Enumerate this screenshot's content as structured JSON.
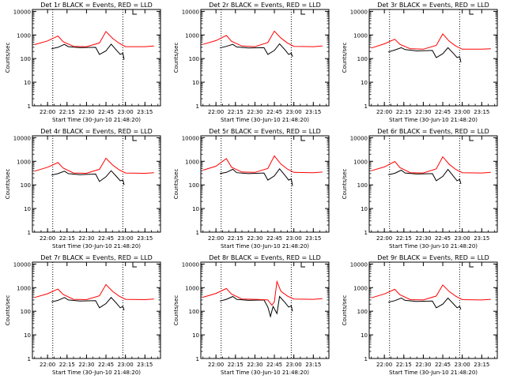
{
  "figure": {
    "colors": {
      "events": "#000000",
      "lld": "#ff0000",
      "axis": "#000000",
      "background": "#ffffff"
    }
  },
  "chart_data": [
    {
      "type": "line",
      "panel": "Det 1r",
      "title": "Det 1r BLACK = Events, RED = LLD",
      "xlabel": "Start Time (30-Jun-10 21:48:20)",
      "ylabel": "Counts/sec",
      "x_ticks": [
        "22:00",
        "22:15",
        "22:30",
        "22:45",
        "23:00",
        "23:15"
      ],
      "y_ticks": [
        "1",
        "10",
        "100",
        "1000",
        "10000"
      ],
      "y_scale": "log",
      "ylim": [
        1,
        12000
      ],
      "xlim": [
        "21:48:20",
        "23:27:00"
      ],
      "markers": [
        "22:04",
        "22:58"
      ],
      "series": [
        {
          "name": "BLACK = Events",
          "x": [
            "22:03",
            "22:08",
            "22:13",
            "22:16",
            "22:25",
            "22:37",
            "22:40",
            "22:45",
            "22:49",
            "22:53",
            "22:56",
            "22:58",
            "22:59"
          ],
          "values": [
            260,
            300,
            400,
            320,
            290,
            300,
            150,
            210,
            410,
            230,
            150,
            170,
            90
          ]
        },
        {
          "name": "RED = LLD",
          "x": [
            "21:50",
            "22:00",
            "22:08",
            "22:12",
            "22:20",
            "22:30",
            "22:40",
            "22:45",
            "22:50",
            "22:55",
            "23:00",
            "23:15",
            "23:22"
          ],
          "values": [
            390,
            560,
            900,
            520,
            330,
            320,
            460,
            1400,
            720,
            450,
            320,
            320,
            340
          ]
        }
      ]
    },
    {
      "type": "line",
      "panel": "Det 2r",
      "title": "Det 2r BLACK = Events, RED = LLD",
      "xlabel": "Start Time (30-Jun-10 21:48:20)",
      "ylabel": "Counts/sec",
      "x_ticks": [
        "22:00",
        "22:15",
        "22:30",
        "22:45",
        "23:00",
        "23:15"
      ],
      "y_ticks": [
        "1",
        "10",
        "100",
        "1000",
        "10000"
      ],
      "y_scale": "log",
      "ylim": [
        1,
        12000
      ],
      "xlim": [
        "21:48:20",
        "23:27:00"
      ],
      "markers": [
        "22:04",
        "22:58"
      ],
      "series": [
        {
          "name": "BLACK = Events",
          "x": [
            "22:03",
            "22:08",
            "22:13",
            "22:16",
            "22:25",
            "22:37",
            "22:40",
            "22:45",
            "22:49",
            "22:53",
            "22:56",
            "22:58",
            "22:59"
          ],
          "values": [
            280,
            330,
            400,
            310,
            280,
            290,
            150,
            220,
            420,
            240,
            150,
            170,
            120
          ]
        },
        {
          "name": "RED = LLD",
          "x": [
            "21:50",
            "22:00",
            "22:08",
            "22:12",
            "22:20",
            "22:30",
            "22:40",
            "22:45",
            "22:50",
            "22:55",
            "23:00",
            "23:15",
            "23:22"
          ],
          "values": [
            400,
            580,
            950,
            540,
            340,
            320,
            480,
            1450,
            740,
            460,
            330,
            320,
            340
          ]
        }
      ]
    },
    {
      "type": "line",
      "panel": "Det 3r",
      "title": "Det 3r BLACK = Events, RED = LLD",
      "xlabel": "Start Time (30-Jun-10 21:48:20)",
      "ylabel": "Counts/sec",
      "x_ticks": [
        "22:00",
        "22:15",
        "22:30",
        "22:45",
        "23:00",
        "23:15"
      ],
      "y_ticks": [
        "1",
        "10",
        "100",
        "1000",
        "10000"
      ],
      "y_scale": "log",
      "ylim": [
        1,
        12000
      ],
      "xlim": [
        "21:48:20",
        "23:27:00"
      ],
      "markers": [
        "22:04",
        "22:58"
      ],
      "series": [
        {
          "name": "BLACK = Events",
          "x": [
            "22:03",
            "22:08",
            "22:13",
            "22:16",
            "22:25",
            "22:37",
            "22:40",
            "22:45",
            "22:49",
            "22:53",
            "22:56",
            "22:58",
            "22:59"
          ],
          "values": [
            190,
            230,
            290,
            240,
            210,
            220,
            110,
            160,
            290,
            170,
            110,
            120,
            70
          ]
        },
        {
          "name": "RED = LLD",
          "x": [
            "21:50",
            "22:00",
            "22:08",
            "22:12",
            "22:20",
            "22:30",
            "22:40",
            "22:45",
            "22:50",
            "22:55",
            "23:00",
            "23:15",
            "23:22"
          ],
          "values": [
            280,
            420,
            660,
            400,
            260,
            250,
            360,
            1100,
            540,
            340,
            250,
            250,
            260
          ]
        }
      ]
    },
    {
      "type": "line",
      "panel": "Det 4r",
      "title": "Det 4r BLACK = Events, RED = LLD",
      "xlabel": "Start Time (30-Jun-10 21:48:20)",
      "ylabel": "Counts/sec",
      "x_ticks": [
        "22:00",
        "22:15",
        "22:30",
        "22:45",
        "23:00",
        "23:15"
      ],
      "y_ticks": [
        "1",
        "10",
        "100",
        "1000",
        "10000"
      ],
      "y_scale": "log",
      "ylim": [
        1,
        12000
      ],
      "xlim": [
        "21:48:20",
        "23:27:00"
      ],
      "markers": [
        "22:04",
        "22:58"
      ],
      "series": [
        {
          "name": "BLACK = Events",
          "x": [
            "22:03",
            "22:08",
            "22:13",
            "22:16",
            "22:25",
            "22:37",
            "22:40",
            "22:45",
            "22:49",
            "22:53",
            "22:56",
            "22:58",
            "22:59"
          ],
          "values": [
            260,
            300,
            380,
            300,
            270,
            290,
            140,
            220,
            400,
            230,
            150,
            160,
            100
          ]
        },
        {
          "name": "RED = LLD",
          "x": [
            "21:50",
            "22:00",
            "22:08",
            "22:12",
            "22:20",
            "22:30",
            "22:40",
            "22:45",
            "22:50",
            "22:55",
            "23:00",
            "23:15",
            "23:22"
          ],
          "values": [
            380,
            560,
            880,
            520,
            320,
            310,
            460,
            1350,
            700,
            440,
            320,
            310,
            330
          ]
        }
      ]
    },
    {
      "type": "line",
      "panel": "Det 5r",
      "title": "Det 5r BLACK = Events, RED = LLD",
      "xlabel": "Start Time (30-Jun-10 21:48:20)",
      "ylabel": "Counts/sec",
      "x_ticks": [
        "22:00",
        "22:15",
        "22:30",
        "22:45",
        "23:00",
        "23:15"
      ],
      "y_ticks": [
        "1",
        "10",
        "100",
        "1000",
        "10000"
      ],
      "y_scale": "log",
      "ylim": [
        1,
        12000
      ],
      "xlim": [
        "21:48:20",
        "23:27:00"
      ],
      "markers": [
        "22:04",
        "22:58"
      ],
      "series": [
        {
          "name": "BLACK = Events",
          "x": [
            "22:03",
            "22:08",
            "22:13",
            "22:16",
            "22:25",
            "22:37",
            "22:40",
            "22:45",
            "22:49",
            "22:53",
            "22:56",
            "22:58",
            "22:59"
          ],
          "values": [
            300,
            340,
            460,
            330,
            300,
            320,
            160,
            240,
            480,
            260,
            160,
            180,
            90
          ]
        },
        {
          "name": "RED = LLD",
          "x": [
            "21:50",
            "22:00",
            "22:08",
            "22:12",
            "22:20",
            "22:30",
            "22:40",
            "22:45",
            "22:50",
            "22:55",
            "23:00",
            "23:15",
            "23:22"
          ],
          "values": [
            420,
            620,
            1300,
            560,
            350,
            340,
            500,
            1700,
            760,
            470,
            340,
            330,
            350
          ]
        }
      ]
    },
    {
      "type": "line",
      "panel": "Det 6r",
      "title": "Det 6r BLACK = Events, RED = LLD",
      "xlabel": "Start Time (30-Jun-10 21:48:20)",
      "ylabel": "Counts/sec",
      "x_ticks": [
        "22:00",
        "22:15",
        "22:30",
        "22:45",
        "23:00",
        "23:15"
      ],
      "y_ticks": [
        "1",
        "10",
        "100",
        "1000",
        "10000"
      ],
      "y_scale": "log",
      "ylim": [
        1,
        12000
      ],
      "xlim": [
        "21:48:20",
        "23:27:00"
      ],
      "markers": [
        "22:04",
        "22:58"
      ],
      "series": [
        {
          "name": "BLACK = Events",
          "x": [
            "22:03",
            "22:08",
            "22:13",
            "22:16",
            "22:25",
            "22:37",
            "22:40",
            "22:45",
            "22:49",
            "22:53",
            "22:56",
            "22:58",
            "22:59"
          ],
          "values": [
            270,
            310,
            420,
            320,
            290,
            300,
            150,
            230,
            450,
            240,
            150,
            170,
            110
          ]
        },
        {
          "name": "RED = LLD",
          "x": [
            "21:50",
            "22:00",
            "22:08",
            "22:12",
            "22:20",
            "22:30",
            "22:40",
            "22:45",
            "22:50",
            "22:55",
            "23:00",
            "23:15",
            "23:22"
          ],
          "values": [
            400,
            580,
            980,
            540,
            330,
            320,
            480,
            1550,
            740,
            450,
            330,
            320,
            340
          ]
        }
      ]
    },
    {
      "type": "line",
      "panel": "Det 7r",
      "title": "Det 7r BLACK = Events, RED = LLD",
      "xlabel": "Start Time (30-Jun-10 21:48:20)",
      "ylabel": "Counts/sec",
      "x_ticks": [
        "22:00",
        "22:15",
        "22:30",
        "22:45",
        "23:00",
        "23:15"
      ],
      "y_ticks": [
        "1",
        "10",
        "100",
        "1000",
        "10000"
      ],
      "y_scale": "log",
      "ylim": [
        1,
        12000
      ],
      "xlim": [
        "21:48:20",
        "23:27:00"
      ],
      "markers": [
        "22:04",
        "22:58"
      ],
      "series": [
        {
          "name": "BLACK = Events",
          "x": [
            "22:03",
            "22:08",
            "22:13",
            "22:16",
            "22:25",
            "22:37",
            "22:40",
            "22:45",
            "22:49",
            "22:53",
            "22:56",
            "22:58",
            "22:59"
          ],
          "values": [
            250,
            290,
            380,
            300,
            270,
            280,
            140,
            210,
            380,
            220,
            140,
            160,
            110
          ]
        },
        {
          "name": "RED = LLD",
          "x": [
            "21:50",
            "22:00",
            "22:08",
            "22:12",
            "22:20",
            "22:30",
            "22:40",
            "22:45",
            "22:50",
            "22:55",
            "23:00",
            "23:15",
            "23:22"
          ],
          "values": [
            380,
            550,
            870,
            510,
            320,
            310,
            450,
            1350,
            700,
            440,
            320,
            310,
            330
          ]
        }
      ]
    },
    {
      "type": "line",
      "panel": "Det 8r",
      "title": "Det 8r BLACK = Events, RED = LLD",
      "xlabel": "Start Time (30-Jun-10 21:48:20)",
      "ylabel": "Counts/sec",
      "x_ticks": [
        "22:00",
        "22:15",
        "22:30",
        "22:45",
        "23:00",
        "23:15"
      ],
      "y_ticks": [
        "1",
        "10",
        "100",
        "1000",
        "10000"
      ],
      "y_scale": "log",
      "ylim": [
        1,
        12000
      ],
      "xlim": [
        "21:48:20",
        "23:27:00"
      ],
      "markers": [
        "22:04",
        "22:58"
      ],
      "series": [
        {
          "name": "BLACK = Events",
          "x": [
            "22:03",
            "22:08",
            "22:13",
            "22:16",
            "22:25",
            "22:37",
            "22:40",
            "22:42",
            "22:44",
            "22:47",
            "22:49",
            "22:53",
            "22:56",
            "22:58",
            "22:59"
          ],
          "values": [
            270,
            320,
            420,
            320,
            290,
            300,
            150,
            60,
            160,
            80,
            420,
            240,
            150,
            170,
            100
          ]
        },
        {
          "name": "RED = LLD",
          "x": [
            "21:50",
            "22:00",
            "22:08",
            "22:12",
            "22:20",
            "22:30",
            "22:40",
            "22:43",
            "22:45",
            "22:47",
            "22:50",
            "22:55",
            "23:00",
            "23:15",
            "23:22"
          ],
          "values": [
            390,
            570,
            920,
            530,
            330,
            320,
            300,
            180,
            250,
            1800,
            700,
            440,
            330,
            320,
            340
          ]
        }
      ]
    },
    {
      "type": "line",
      "panel": "Det 9r",
      "title": "Det 9r BLACK = Events, RED = LLD",
      "xlabel": "Start Time (30-Jun-10 21:48:20)",
      "ylabel": "Counts/sec",
      "x_ticks": [
        "22:00",
        "22:15",
        "22:30",
        "22:45",
        "23:00",
        "23:15"
      ],
      "y_ticks": [
        "1",
        "10",
        "100",
        "1000",
        "10000"
      ],
      "y_scale": "log",
      "ylim": [
        1,
        12000
      ],
      "xlim": [
        "21:48:20",
        "23:27:00"
      ],
      "markers": [
        "22:04",
        "22:58"
      ],
      "series": [
        {
          "name": "BLACK = Events",
          "x": [
            "22:03",
            "22:08",
            "22:13",
            "22:16",
            "22:25",
            "22:37",
            "22:40",
            "22:45",
            "22:49",
            "22:53",
            "22:56",
            "22:58",
            "22:59"
          ],
          "values": [
            240,
            280,
            360,
            290,
            260,
            270,
            140,
            200,
            360,
            210,
            140,
            160,
            120
          ]
        },
        {
          "name": "RED = LLD",
          "x": [
            "21:50",
            "22:00",
            "22:08",
            "22:12",
            "22:20",
            "22:30",
            "22:40",
            "22:45",
            "22:50",
            "22:55",
            "23:00",
            "23:15",
            "23:22"
          ],
          "values": [
            370,
            540,
            850,
            500,
            310,
            300,
            440,
            1300,
            680,
            430,
            310,
            300,
            320
          ]
        }
      ]
    }
  ]
}
